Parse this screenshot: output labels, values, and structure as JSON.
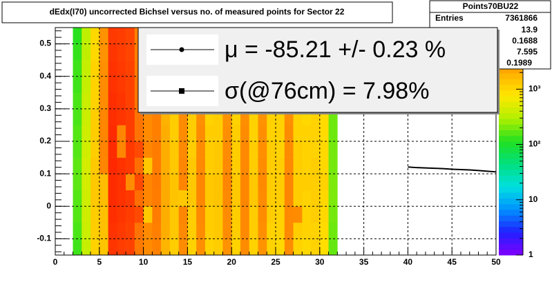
{
  "chart_data": {
    "type": "heatmap",
    "title": "dEdx(I70) uncorrected Bichsel versus no. of measured points for Sector 22",
    "xlim": [
      0,
      50
    ],
    "xticks": [
      0,
      5,
      10,
      15,
      20,
      25,
      30,
      35,
      40,
      45,
      50
    ],
    "ylim": [
      -0.15,
      0.55
    ],
    "yticks": [
      -0.1,
      0,
      0.1,
      0.2,
      0.3,
      0.4,
      0.5
    ],
    "grid": true,
    "xbins": [
      2,
      3,
      4,
      5,
      6,
      7,
      8,
      9,
      10,
      11,
      12,
      13,
      14,
      15,
      16,
      17,
      18,
      19,
      20,
      21,
      22,
      23,
      24,
      25,
      26,
      27,
      28,
      29,
      30,
      31,
      32
    ],
    "ybins": [
      -0.15,
      -0.1,
      -0.05,
      0,
      0.05,
      0.1,
      0.15,
      0.2,
      0.25,
      0.3,
      0.35,
      0.4,
      0.45,
      0.5,
      0.55
    ],
    "zlim": [
      1,
      13000
    ],
    "log_z": true,
    "zticks": [
      {
        "value": 1,
        "label": "1"
      },
      {
        "value": 10,
        "label": "10"
      },
      {
        "value": 100,
        "label": "10²"
      },
      {
        "value": 1000,
        "label": "10³"
      }
    ],
    "palette": [
      "#8000ff",
      "#2020ff",
      "#0090ff",
      "#00e0e0",
      "#00e080",
      "#20e020",
      "#b0f000",
      "#ffe800",
      "#ffb000",
      "#ff6000",
      "#ff2000"
    ],
    "z": [
      [
        140,
        150,
        160,
        160,
        170,
        170,
        160,
        160,
        150,
        150,
        140,
        140,
        130,
        120
      ],
      [
        380,
        400,
        420,
        420,
        450,
        450,
        430,
        420,
        400,
        400,
        380,
        380,
        360,
        350
      ],
      [
        1100,
        1200,
        1200,
        1300,
        1300,
        1300,
        1200,
        1200,
        1200,
        1100,
        1100,
        1100,
        1000,
        1000
      ],
      [
        1400,
        1500,
        1500,
        1600,
        1600,
        3200,
        3300,
        3200,
        3200,
        3000,
        3000,
        2900,
        2800,
        2800
      ],
      [
        9500,
        10000,
        10500,
        11000,
        11000,
        11500,
        11000,
        11000,
        10500,
        10500,
        10000,
        10000,
        9500,
        9000
      ],
      [
        8500,
        9000,
        9500,
        10000,
        10000,
        10000,
        3200,
        3200,
        9500,
        9500,
        9000,
        9000,
        8500,
        8500
      ],
      [
        8000,
        8000,
        8500,
        9000,
        3000,
        9000,
        9000,
        8500,
        8500,
        8000,
        8000,
        8000,
        7500,
        7500
      ],
      [
        3800,
        4000,
        7000,
        4200,
        7200,
        4200,
        7000,
        4000,
        4000,
        3800,
        3800,
        3600,
        3500,
        3400
      ],
      [
        3000,
        3000,
        1300,
        3200,
        3200,
        1300,
        3200,
        3000,
        3000,
        2900,
        2900,
        2800,
        2700,
        2600
      ],
      [
        3400,
        3500,
        3600,
        3600,
        3700,
        3600,
        3600,
        3500,
        3500,
        3400,
        3300,
        3200,
        3100,
        3000
      ],
      [
        1800,
        2000,
        2000,
        2100,
        2100,
        2000,
        2000,
        2000,
        1900,
        1900,
        1800,
        1800,
        1700,
        1600
      ],
      [
        1200,
        1300,
        1300,
        1400,
        1400,
        1300,
        1300,
        1200,
        1200,
        1200,
        1100,
        1100,
        1000,
        1000
      ],
      [
        3000,
        3100,
        3200,
        1300,
        3300,
        3200,
        3100,
        3000,
        3000,
        2900,
        2800,
        2700,
        2600,
        2500
      ],
      [
        1100,
        1200,
        1200,
        1300,
        1300,
        1300,
        1200,
        1200,
        1200,
        1100,
        1100,
        1000,
        1000,
        950
      ],
      [
        2900,
        3000,
        3100,
        3200,
        3200,
        3100,
        3000,
        3000,
        2900,
        2800,
        2800,
        2700,
        2600,
        2500
      ],
      [
        1100,
        1200,
        1200,
        1300,
        1300,
        1200,
        1200,
        1200,
        1100,
        1100,
        1100,
        1000,
        1000,
        950
      ],
      [
        1200,
        1300,
        1300,
        1400,
        1400,
        1300,
        1300,
        1200,
        1200,
        1200,
        1100,
        1100,
        1000,
        1000
      ],
      [
        2800,
        3000,
        3000,
        3100,
        3200,
        3100,
        3000,
        2900,
        2800,
        2800,
        2700,
        2600,
        2500,
        2400
      ],
      [
        1100,
        1200,
        1200,
        1300,
        1300,
        1200,
        1200,
        1200,
        1100,
        1100,
        1000,
        1000,
        950,
        900
      ],
      [
        3000,
        3100,
        3100,
        3200,
        3200,
        3100,
        3100,
        3000,
        2900,
        2900,
        2800,
        2700,
        2600,
        2500
      ],
      [
        1100,
        1200,
        1200,
        1300,
        1300,
        1200,
        1200,
        1100,
        1100,
        1100,
        1000,
        1000,
        950,
        900
      ],
      [
        2800,
        2900,
        3000,
        3000,
        3100,
        3000,
        2900,
        2900,
        2800,
        2700,
        2700,
        2600,
        2500,
        2400
      ],
      [
        1100,
        1100,
        1200,
        1200,
        1200,
        1200,
        1200,
        1100,
        1100,
        1000,
        1000,
        950,
        900,
        880
      ],
      [
        1000,
        1100,
        1100,
        1200,
        1200,
        1200,
        1100,
        1100,
        1100,
        1000,
        1000,
        950,
        900,
        880
      ],
      [
        3000,
        3100,
        3100,
        3200,
        3200,
        3100,
        3000,
        3000,
        2900,
        2800,
        2800,
        2700,
        2600,
        2500
      ],
      [
        1100,
        1200,
        3000,
        1200,
        1200,
        1200,
        1200,
        1100,
        1100,
        1000,
        1000,
        950,
        900,
        880
      ],
      [
        1000,
        1100,
        1100,
        1100,
        1200,
        1100,
        1100,
        1100,
        1000,
        1000,
        950,
        900,
        880,
        850
      ],
      [
        1100,
        1100,
        1200,
        1200,
        1200,
        1200,
        1100,
        1100,
        1100,
        1000,
        1000,
        950,
        900,
        880
      ],
      [
        900,
        950,
        1000,
        1000,
        1100,
        1000,
        1000,
        950,
        950,
        900,
        900,
        850,
        800,
        800
      ],
      [
        180,
        190,
        200,
        210,
        210,
        200,
        200,
        190,
        190,
        180,
        180,
        170,
        160,
        160
      ]
    ],
    "line": {
      "color": "#000000",
      "x": [
        40,
        41,
        42,
        43,
        44,
        45,
        46,
        47,
        48,
        49,
        50
      ],
      "values": [
        0.121,
        0.119,
        0.118,
        0.117,
        0.116,
        0.114,
        0.113,
        0.112,
        0.11,
        0.108,
        0.106
      ]
    },
    "legend": [
      "μ  = -85.21 +/-  0.23 %",
      "σ(@76cm) =  7.98%"
    ],
    "stats": {
      "title": "Points70BU22",
      "entries_label": "Entries",
      "entries": 7361866,
      "values": [
        13.9,
        0.1688,
        7.595,
        0.1989
      ]
    }
  }
}
